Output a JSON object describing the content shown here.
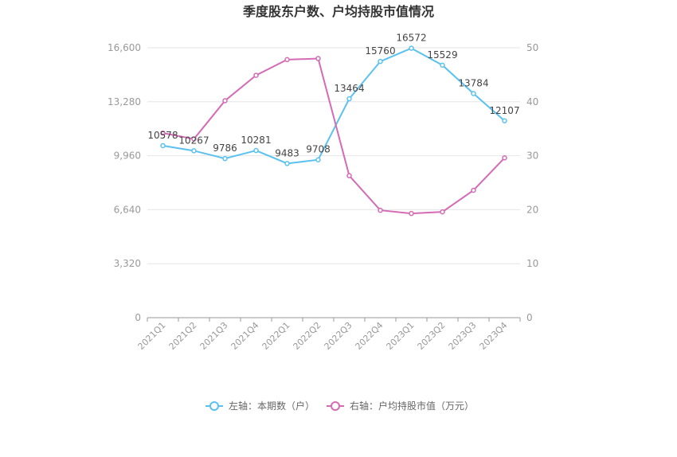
{
  "chart_data": {
    "type": "line",
    "title": "季度股东户数、户均持股市值情况",
    "categories": [
      "2021Q1",
      "2021Q2",
      "2021Q3",
      "2021Q4",
      "2022Q1",
      "2022Q2",
      "2022Q3",
      "2022Q4",
      "2023Q1",
      "2023Q2",
      "2023Q3",
      "2023Q4"
    ],
    "left_axis": {
      "ylim": [
        0,
        16600
      ],
      "ticks": [
        "0",
        "3,320",
        "6,640",
        "9,960",
        "13,280",
        "16,600"
      ]
    },
    "right_axis": {
      "ylim": [
        0,
        50
      ],
      "ticks": [
        "0",
        "10",
        "20",
        "30",
        "40",
        "50"
      ]
    },
    "series": [
      {
        "name": "左轴：本期数（户）",
        "axis": "left",
        "color": "#5bc1f0",
        "values": [
          10578,
          10267,
          9786,
          10281,
          9483,
          9708,
          13464,
          15760,
          16572,
          15529,
          13784,
          12107
        ],
        "labels": [
          "10578",
          "10267",
          "9786",
          "10281",
          "9483",
          "9708",
          "13464",
          "15760",
          "16572",
          "15529",
          "13784",
          "12107"
        ]
      },
      {
        "name": "右轴：户均持股市值（万元）",
        "axis": "right",
        "color": "#d46bb4",
        "values": [
          34.2,
          33.1,
          40.2,
          44.9,
          47.8,
          48.0,
          26.3,
          19.9,
          19.3,
          19.6,
          23.6,
          29.6
        ]
      }
    ],
    "grid": true,
    "legend": "bottom-center"
  }
}
